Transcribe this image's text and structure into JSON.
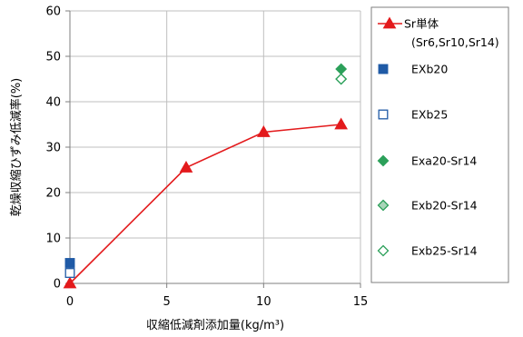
{
  "chart_data": {
    "type": "scatter",
    "xlabel": "収縮低減剤添加量(kg/m³)",
    "ylabel": "乾燥収縮ひずみ低減率(%)",
    "xlim": [
      0,
      15
    ],
    "ylim": [
      0,
      60
    ],
    "xticks": [
      0,
      5,
      10,
      15
    ],
    "yticks": [
      0,
      10,
      20,
      30,
      40,
      50,
      60
    ],
    "grid": "vertical and horizontal",
    "legend_position": "right",
    "series": [
      {
        "name": "Sr単体",
        "name_sub": "(Sr6,Sr10,Sr14)",
        "marker": "triangle-up",
        "line": true,
        "color": "#e31a1c",
        "x": [
          0,
          6,
          10,
          14
        ],
        "y": [
          0,
          25.5,
          33.3,
          35
        ]
      },
      {
        "name": "EXb20",
        "marker": "square",
        "filled": true,
        "color": "#1f5aa6",
        "x": [
          0
        ],
        "y": [
          4.5
        ]
      },
      {
        "name": "EXb25",
        "marker": "square",
        "filled": false,
        "color": "#1f5aa6",
        "x": [
          0
        ],
        "y": [
          2.3
        ]
      },
      {
        "name": "Exa20-Sr14",
        "marker": "diamond",
        "filled": true,
        "color": "#2ca05a",
        "x": [
          14
        ],
        "y": [
          47.2
        ]
      },
      {
        "name": "Exb20-Sr14",
        "marker": "diamond",
        "filled": "light",
        "color": "#2ca05a",
        "x": [
          14
        ],
        "y": [
          45
        ]
      },
      {
        "name": "Exb25-Sr14",
        "marker": "diamond",
        "filled": false,
        "color": "#2ca05a",
        "x": [
          14
        ],
        "y": [
          45
        ]
      }
    ]
  }
}
